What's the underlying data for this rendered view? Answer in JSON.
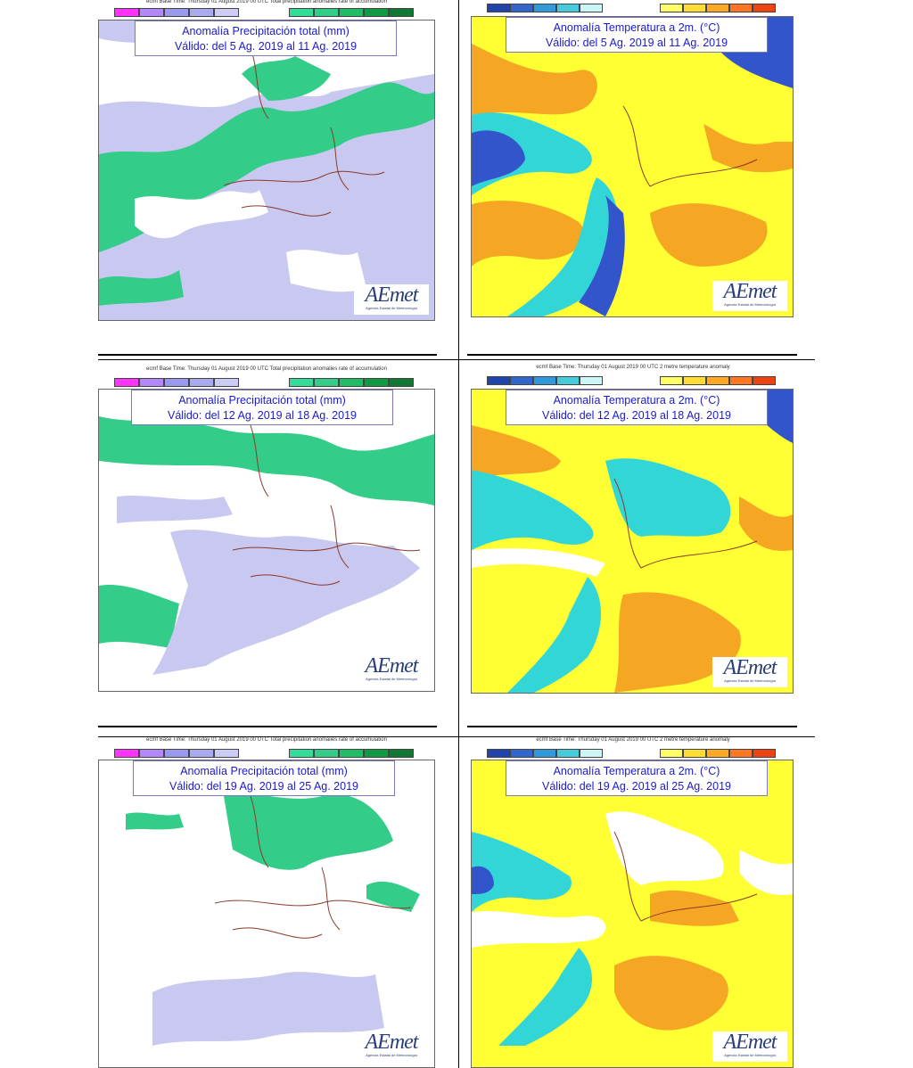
{
  "precip_header": "ecmf Base Time: Thursday 01 August 2019 00 UTC Total precipitation anomalies rate of accumulation",
  "temp_header": "ecmf Base Time: Thursday 01 August 2019 00 UTC 2 metre temperature anomaly",
  "logo": {
    "main": "AEmet",
    "sub": "Agencia Estatal de Meteorología"
  },
  "colors": {
    "precip_wet": "#33cc88",
    "precip_dry": "#c8c8f0",
    "temp_warm": "#ffff33",
    "temp_hot": "#f5a623",
    "temp_cool": "#33d6d6",
    "temp_cold": "#3355cc"
  },
  "precip_scale": [
    "-200",
    "-100",
    "-50",
    "-20",
    "-10",
    "0",
    "10",
    "20",
    "50",
    "100",
    "200"
  ],
  "temp_scale": [
    "-10",
    "-8",
    "-4",
    "-2",
    "-1",
    "0",
    "1",
    "2",
    "4",
    "8",
    "10"
  ],
  "panels": [
    {
      "title": "Anomalía Precipitación total (mm)",
      "subtitle": "Válido: del 5 Ag. 2019 al 11 Ag. 2019"
    },
    {
      "title": "Anomalía Temperatura a 2m. (°C)",
      "subtitle": "Válido: del 5 Ag. 2019 al 11 Ag. 2019"
    },
    {
      "title": "Anomalía Precipitación total (mm)",
      "subtitle": "Válido: del 12 Ag. 2019 al 18 Ag. 2019"
    },
    {
      "title": "Anomalía Temperatura a 2m. (°C)",
      "subtitle": "Válido: del 12 Ag. 2019 al 18 Ag. 2019"
    },
    {
      "title": "Anomalía Precipitación total (mm)",
      "subtitle": "Válido: del 19 Ag. 2019 al 25 Ag. 2019"
    },
    {
      "title": "Anomalía Temperatura a 2m. (°C)",
      "subtitle": "Válido: del 19 Ag. 2019 al 25 Ag. 2019"
    }
  ]
}
